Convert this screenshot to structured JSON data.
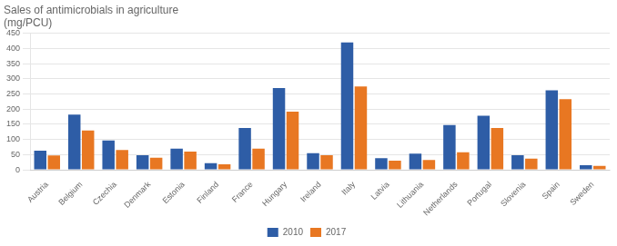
{
  "chart_data": {
    "type": "bar",
    "title": "Sales of antimicrobials in agriculture\n(mg/PCU)",
    "categories": [
      "Austria",
      "Belgium",
      "Czechia",
      "Denmark",
      "Estonia",
      "Finland",
      "France",
      "Hungary",
      "Ireland",
      "Italy",
      "Latvia",
      "Lithuania",
      "Netherlands",
      "Portugal",
      "Slovenia",
      "Spain",
      "Sweden"
    ],
    "series": [
      {
        "name": "2010",
        "color": "#2E5DA6",
        "values": [
          63,
          182,
          97,
          48,
          70,
          22,
          138,
          270,
          55,
          420,
          38,
          53,
          148,
          178,
          48,
          262,
          15
        ]
      },
      {
        "name": "2017",
        "color": "#E87722",
        "values": [
          47,
          130,
          65,
          40,
          60,
          18,
          70,
          192,
          48,
          275,
          30,
          32,
          58,
          138,
          37,
          233,
          13
        ]
      }
    ],
    "ylim": [
      0,
      450
    ],
    "yticks": [
      0,
      50,
      100,
      150,
      200,
      250,
      300,
      350,
      400,
      450
    ],
    "grid": true,
    "legend": "bottom"
  }
}
